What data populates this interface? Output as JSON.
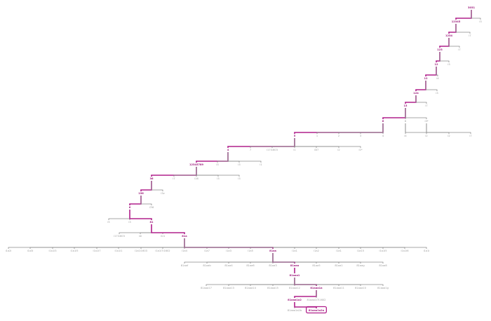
{
  "colors": {
    "highlight": "#b0208c",
    "line": "#8a8a8a",
    "text": "#9a9a9a",
    "background": "#ffffff"
  },
  "tree": {
    "root": "3031",
    "nodes": [
      {
        "id": "r",
        "label": "3031",
        "parent": null,
        "active": true
      },
      {
        "id": "r1",
        "label": "12345",
        "parent": "r",
        "active": true
      },
      {
        "id": "r2",
        "label": "i3",
        "parent": "r",
        "active": false
      },
      {
        "id": "r1a",
        "label": "1234",
        "parent": "r1",
        "active": true
      },
      {
        "id": "r1b",
        "label": "i7",
        "parent": "r1",
        "active": false
      },
      {
        "id": "r1a1",
        "label": "123",
        "parent": "r1a",
        "active": true
      },
      {
        "id": "r1a2",
        "label": "i7",
        "parent": "r1a",
        "active": false
      },
      {
        "id": "l4a",
        "label": "12",
        "parent": "r1a1",
        "active": true
      },
      {
        "id": "l4b",
        "label": "i3",
        "parent": "r1a1",
        "active": false
      },
      {
        "id": "l5a",
        "label": "12",
        "parent": "l4a",
        "active": true
      },
      {
        "id": "l5b",
        "label": "i4",
        "parent": "l4a",
        "active": false
      },
      {
        "id": "l6a",
        "label": "124",
        "parent": "l5a",
        "active": true
      },
      {
        "id": "l6b",
        "label": "i3",
        "parent": "l5a",
        "active": false
      },
      {
        "id": "l7a",
        "label": "13",
        "parent": "l6a",
        "active": true
      },
      {
        "id": "l7b",
        "label": "i7",
        "parent": "l6a",
        "active": false
      },
      {
        "id": "l8a",
        "label": "6",
        "parent": "l7a",
        "active": true
      },
      {
        "id": "l8b",
        "label": "8",
        "parent": "l7a",
        "active": false
      },
      {
        "id": "l8c",
        "label": "i3*",
        "parent": "l7a",
        "active": false
      },
      {
        "id": "l9a",
        "label": "5",
        "parent": "l8a",
        "active": true
      },
      {
        "id": "l9b",
        "label": "1",
        "parent": "l8a",
        "active": false
      },
      {
        "id": "l9c",
        "label": "2",
        "parent": "l8a",
        "active": false
      },
      {
        "id": "l9d",
        "label": "3",
        "parent": "l8a",
        "active": false
      },
      {
        "id": "l9e",
        "label": "4",
        "parent": "l8a",
        "active": false
      },
      {
        "id": "l9f",
        "label": "i4",
        "parent": "l8b",
        "active": false
      },
      {
        "id": "l9g",
        "label": "i2",
        "parent": "l8b",
        "active": false
      },
      {
        "id": "l9h",
        "label": "i2",
        "parent": "l8c",
        "active": false
      },
      {
        "id": "l9i",
        "label": "i7",
        "parent": "l8c",
        "active": false
      },
      {
        "id": "l10a",
        "label": "4",
        "parent": "l9a",
        "active": true
      },
      {
        "id": "l10b",
        "label": "7",
        "parent": "l9a",
        "active": false
      },
      {
        "id": "l10c",
        "label": "i17i1603",
        "parent": "l9a",
        "active": false
      },
      {
        "id": "l10d",
        "label": "i1",
        "parent": "l9a",
        "active": false
      },
      {
        "id": "l10e",
        "label": "i3i7",
        "parent": "l9a",
        "active": false
      },
      {
        "id": "l10f",
        "label": "i2",
        "parent": "l9a",
        "active": false
      },
      {
        "id": "l10g",
        "label": "i1*",
        "parent": "l9a",
        "active": false
      },
      {
        "id": "l11a",
        "label": "12345789",
        "parent": "l10a",
        "active": true
      },
      {
        "id": "l11b",
        "label": "i3",
        "parent": "l10a",
        "active": false
      },
      {
        "id": "l11c",
        "label": "i3",
        "parent": "l10a",
        "active": false
      },
      {
        "id": "l11d",
        "label": "i1",
        "parent": "l10a",
        "active": false
      },
      {
        "id": "l12a",
        "label": "36",
        "parent": "l11a",
        "active": true
      },
      {
        "id": "l12b",
        "label": "i7",
        "parent": "l11a",
        "active": false
      },
      {
        "id": "l12c",
        "label": "i16",
        "parent": "l11a",
        "active": false
      },
      {
        "id": "l12d",
        "label": "i3",
        "parent": "l11a",
        "active": false
      },
      {
        "id": "l12e",
        "label": "i3",
        "parent": "l11a",
        "active": false
      },
      {
        "id": "l13a",
        "label": "156",
        "parent": "l12a",
        "active": true
      },
      {
        "id": "l13b",
        "label": "i3z",
        "parent": "l12a",
        "active": false
      },
      {
        "id": "l14a",
        "label": "6",
        "parent": "l13a",
        "active": true
      },
      {
        "id": "l14b",
        "label": "i7i6",
        "parent": "l13a",
        "active": false
      },
      {
        "id": "l15a",
        "label": "i5",
        "parent": "l14a",
        "active": false
      },
      {
        "id": "l15b",
        "label": "i3",
        "parent": "l14a",
        "active": false
      },
      {
        "id": "l15c",
        "label": "81",
        "parent": "l14a",
        "active": true
      },
      {
        "id": "l16a",
        "label": "i17i1603",
        "parent": "l15c",
        "active": false
      },
      {
        "id": "l16b",
        "label": "i4i",
        "parent": "l15c",
        "active": false
      },
      {
        "id": "l16c",
        "label": "i1i1",
        "parent": "l15c",
        "active": false
      },
      {
        "id": "l16d",
        "label": "81a",
        "parent": "l15c",
        "active": true
      },
      {
        "id": "m1",
        "label": "i1a2i",
        "parent": "l16d",
        "active": false
      },
      {
        "id": "m2",
        "label": "i1a3i",
        "parent": "l16d",
        "active": false
      },
      {
        "id": "m3",
        "label": "i1a1i3",
        "parent": "l16d",
        "active": false
      },
      {
        "id": "m4",
        "label": "i1a1i5",
        "parent": "l16d",
        "active": false
      },
      {
        "id": "m5",
        "label": "i1a1i7",
        "parent": "l16d",
        "active": false
      },
      {
        "id": "m6",
        "label": "i1a1i1",
        "parent": "l16d",
        "active": false
      },
      {
        "id": "m7",
        "label": "i1a1i1603",
        "parent": "l16d",
        "active": false
      },
      {
        "id": "m8",
        "label": "i1a1i7i1602",
        "parent": "l16d",
        "active": false
      },
      {
        "id": "m9",
        "label": "i1a4",
        "parent": "l16d",
        "active": false
      },
      {
        "id": "m10",
        "label": "i1a7",
        "parent": "l16d",
        "active": false
      },
      {
        "id": "m11",
        "label": "i1a3",
        "parent": "l16d",
        "active": false
      },
      {
        "id": "m12",
        "label": "i1a5",
        "parent": "l16d",
        "active": false
      },
      {
        "id": "m13",
        "label": "81aa",
        "parent": "l16d",
        "active": true
      },
      {
        "id": "m14",
        "label": "i1a1",
        "parent": "l16d",
        "active": false
      },
      {
        "id": "m15",
        "label": "i1a2",
        "parent": "l16d",
        "active": false
      },
      {
        "id": "m16",
        "label": "i1a1",
        "parent": "l16d",
        "active": false
      },
      {
        "id": "m17",
        "label": "i1a15",
        "parent": "l16d",
        "active": false
      },
      {
        "id": "m18",
        "label": "i1a1i5",
        "parent": "l16d",
        "active": false
      },
      {
        "id": "m19",
        "label": "i1a1i6",
        "parent": "l16d",
        "active": false
      },
      {
        "id": "m20",
        "label": "i1a1i",
        "parent": "l16d",
        "active": false
      },
      {
        "id": "n1",
        "label": "81aaf",
        "parent": "m13",
        "active": false
      },
      {
        "id": "n2",
        "label": "81aab",
        "parent": "m13",
        "active": false
      },
      {
        "id": "n3",
        "label": "81aa4",
        "parent": "m13",
        "active": false
      },
      {
        "id": "n4",
        "label": "81aa6",
        "parent": "m13",
        "active": false
      },
      {
        "id": "n5",
        "label": "81aa3",
        "parent": "m13",
        "active": false
      },
      {
        "id": "n6",
        "label": "81aaa",
        "parent": "m13",
        "active": true
      },
      {
        "id": "n7",
        "label": "81aa5",
        "parent": "m13",
        "active": false
      },
      {
        "id": "n8",
        "label": "81aa1",
        "parent": "m13",
        "active": false
      },
      {
        "id": "n9",
        "label": "81aag",
        "parent": "m13",
        "active": false
      },
      {
        "id": "n10",
        "label": "81aa8",
        "parent": "m13",
        "active": false
      },
      {
        "id": "o1",
        "label": "81aaa1",
        "parent": "n6",
        "active": true
      },
      {
        "id": "p1",
        "label": "81aaa17",
        "parent": "o1",
        "active": false
      },
      {
        "id": "p2",
        "label": "81aaa13",
        "parent": "o1",
        "active": false
      },
      {
        "id": "p3",
        "label": "81aaa14",
        "parent": "o1",
        "active": false
      },
      {
        "id": "p4",
        "label": "81aaa15",
        "parent": "o1",
        "active": false
      },
      {
        "id": "p5",
        "label": "81aaa12",
        "parent": "o1",
        "active": false
      },
      {
        "id": "p6",
        "label": "81aaa1a",
        "parent": "o1",
        "active": true
      },
      {
        "id": "p7",
        "label": "81aaa11",
        "parent": "o1",
        "active": false
      },
      {
        "id": "p8",
        "label": "81aaa10",
        "parent": "o1",
        "active": false
      },
      {
        "id": "p9",
        "label": "81aaa1g",
        "parent": "o1",
        "active": false
      },
      {
        "id": "q1",
        "label": "81aaa1a2",
        "parent": "p6",
        "active": true
      },
      {
        "id": "q2",
        "label": "81aaa1i7i1602",
        "parent": "p6",
        "active": false
      },
      {
        "id": "s1",
        "label": "81aaa1a2b",
        "parent": "q1",
        "active": false
      },
      {
        "id": "s2",
        "label": "81aaa1a2a",
        "parent": "q1",
        "active": true,
        "focused": true
      }
    ]
  }
}
